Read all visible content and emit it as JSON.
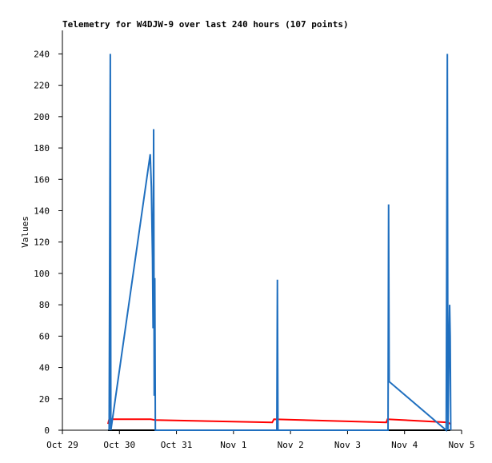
{
  "chart_data": {
    "type": "line",
    "title": "Telemetry for W4DJW-9 over last 240 hours (107 points)",
    "y_label": "Values",
    "xlim": [
      0,
      7
    ],
    "xticks": [
      {
        "value": 0,
        "label": "Oct 29"
      },
      {
        "value": 1,
        "label": "Oct 30"
      },
      {
        "value": 2,
        "label": "Oct 31"
      },
      {
        "value": 3,
        "label": "Nov 1"
      },
      {
        "value": 4,
        "label": "Nov 2"
      },
      {
        "value": 5,
        "label": "Nov 3"
      },
      {
        "value": 6,
        "label": "Nov 4"
      },
      {
        "value": 7,
        "label": "Nov 5"
      }
    ],
    "ylim": [
      0,
      255
    ],
    "yticks": [
      0,
      20,
      40,
      60,
      80,
      100,
      120,
      140,
      160,
      180,
      200,
      220,
      240
    ],
    "series": [
      {
        "color": "#000000",
        "x": [
          0.8,
          6.8
        ],
        "values": [
          0,
          0
        ]
      },
      {
        "color": "#ff0000",
        "x": [
          0.8,
          0.82,
          1.55,
          1.62,
          3.68,
          3.71,
          5.68,
          5.7,
          6.76,
          6.8
        ],
        "values": [
          4,
          7,
          7,
          6.5,
          5,
          7,
          5,
          7,
          5,
          4
        ]
      },
      {
        "color": "#1f6fbf",
        "x": [
          0.82,
          0.84,
          0.85,
          1.54,
          1.56,
          1.58,
          1.59,
          1.6,
          1.61,
          1.62,
          1.63,
          3.76,
          3.77,
          3.78,
          5.71,
          5.72,
          5.73,
          6.73,
          6.75,
          6.76,
          6.79,
          6.8,
          6.81
        ],
        "values": [
          0,
          240,
          0,
          176,
          155,
          110,
          65,
          192,
          22,
          97,
          0,
          0,
          96,
          0,
          0,
          144,
          31,
          0,
          240,
          0,
          80,
          60,
          0
        ]
      }
    ]
  }
}
